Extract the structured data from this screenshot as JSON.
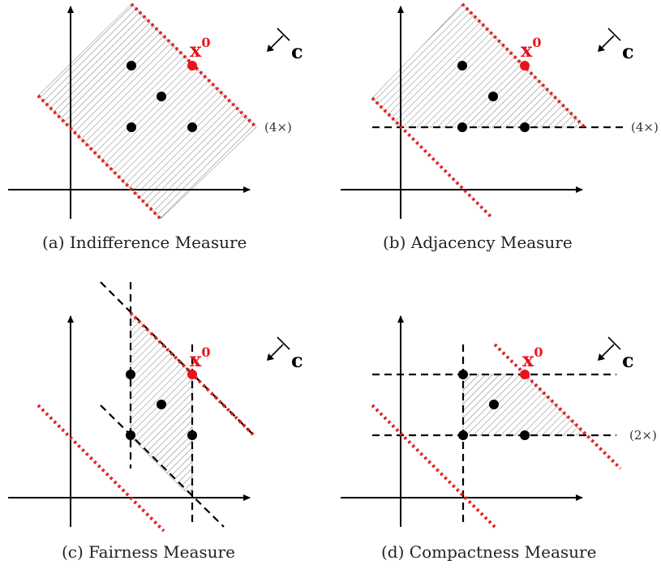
{
  "panels": [
    {
      "id": "a",
      "caption": "(a)  Indifference Measure",
      "point_label": "x",
      "point_sup": "0",
      "direction_label": "c",
      "multiplicity": "(4×)"
    },
    {
      "id": "b",
      "caption": "(b)  Adjacency Measure",
      "point_label": "x",
      "point_sup": "0",
      "direction_label": "c",
      "multiplicity": "(4×)"
    },
    {
      "id": "c",
      "caption": "(c)  Fairness Measure",
      "point_label": "x",
      "point_sup": "0",
      "direction_label": "c"
    },
    {
      "id": "d",
      "caption": "(d)  Compactness Measure",
      "point_label": "x",
      "point_sup": "0",
      "direction_label": "c",
      "multiplicity": "(2×)"
    }
  ],
  "colors": {
    "highlight": "#e8141c",
    "ink": "#000000",
    "hatch": "#7a7a7a"
  }
}
